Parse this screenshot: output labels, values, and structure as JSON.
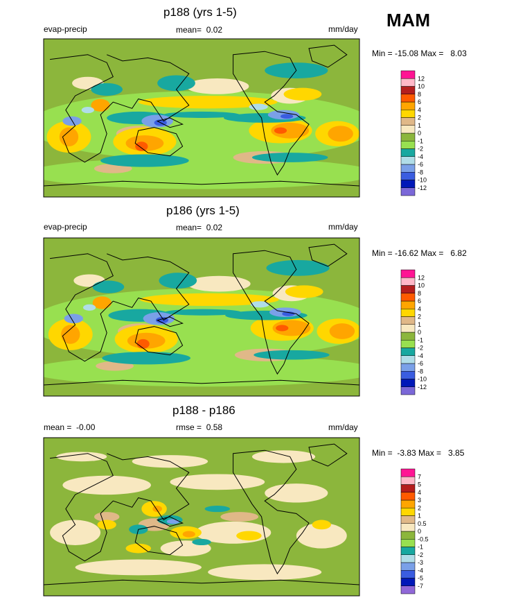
{
  "season": "MAM",
  "colors": {
    "main": [
      "#7b68d8",
      "#0018b8",
      "#3a5de0",
      "#7aa0e8",
      "#b0dde8",
      "#18a8a0",
      "#98e050",
      "#8cb63c",
      "#f8e8c0",
      "#e0b888",
      "#ffd700",
      "#ffa500",
      "#ff5a00",
      "#b41e1e",
      "#ffb8c8",
      "#ff1493"
    ],
    "diff": [
      "#9068d8",
      "#0018b8",
      "#3a5de0",
      "#7aa0e8",
      "#b0dde8",
      "#18a8a0",
      "#98e050",
      "#8cb63c",
      "#f8e8c0",
      "#e0b888",
      "#ffd700",
      "#ffa500",
      "#ff5a00",
      "#b41e1e",
      "#ffb8c8",
      "#ff1493"
    ]
  },
  "chart_data": [
    {
      "type": "heatmap",
      "title": "p188 (yrs 1-5)",
      "variable": "evap-precip",
      "stat_label": "mean=",
      "stat_value": "0.02",
      "units": "mm/day",
      "minmax": "Min = -15.08 Max =   8.03",
      "min": -15.08,
      "max": 8.03,
      "contour_levels": [
        "12",
        "10",
        "8",
        "6",
        "4",
        "2",
        "1",
        "0",
        "-1",
        "-2",
        "-4",
        "-6",
        "-8",
        "-10",
        "-12"
      ]
    },
    {
      "type": "heatmap",
      "title": "p186 (yrs 1-5)",
      "variable": "evap-precip",
      "stat_label": "mean=",
      "stat_value": "0.02",
      "units": "mm/day",
      "minmax": "Min = -16.62 Max =   6.82",
      "min": -16.62,
      "max": 6.82,
      "contour_levels": [
        "12",
        "10",
        "8",
        "6",
        "4",
        "2",
        "1",
        "0",
        "-1",
        "-2",
        "-4",
        "-6",
        "-8",
        "-10",
        "-12"
      ]
    },
    {
      "type": "heatmap",
      "title": "p188 - p186",
      "variable": "mean =  -0.00",
      "stat_label": "rmse =",
      "stat_value": "0.58",
      "units": "mm/day",
      "minmax": "Min =  -3.83 Max =   3.85",
      "min": -3.83,
      "max": 3.85,
      "contour_levels": [
        "7",
        "5",
        "4",
        "3",
        "2",
        "1",
        "0.5",
        "0",
        "-0.5",
        "-1",
        "-2",
        "-3",
        "-4",
        "-5",
        "-7"
      ]
    }
  ]
}
